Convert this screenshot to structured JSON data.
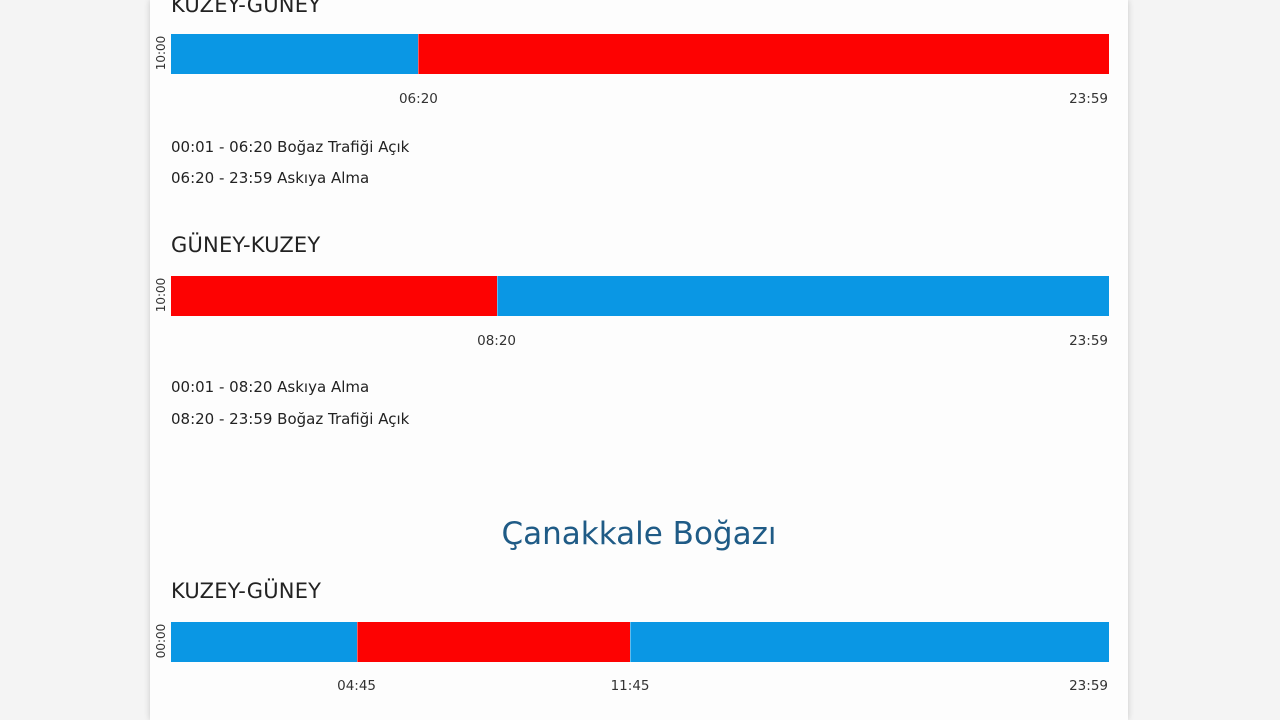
{
  "colors": {
    "open": "#0a97e4",
    "suspended": "#fd0202"
  },
  "straits": [
    {
      "title": "",
      "directions": [
        {
          "title": "KUZEY-GÜNEY",
          "start_label": "10:00",
          "segments": [
            {
              "status": "open",
              "from": "00:01",
              "to": "06:20"
            },
            {
              "status": "suspended",
              "from": "06:20",
              "to": "23:59"
            }
          ],
          "ticks": [
            "06:20",
            "23:59"
          ],
          "schedule": [
            "00:01 - 06:20 Boğaz Trafiği Açık",
            "06:20 - 23:59 Askıya Alma"
          ]
        },
        {
          "title": "GÜNEY-KUZEY",
          "start_label": "10:00",
          "segments": [
            {
              "status": "suspended",
              "from": "00:01",
              "to": "08:20"
            },
            {
              "status": "open",
              "from": "08:20",
              "to": "23:59"
            }
          ],
          "ticks": [
            "08:20",
            "23:59"
          ],
          "schedule": [
            "00:01 - 08:20 Askıya Alma",
            "08:20 - 23:59 Boğaz Trafiği Açık"
          ]
        }
      ]
    },
    {
      "title": "Çanakkale Boğazı",
      "directions": [
        {
          "title": "KUZEY-GÜNEY",
          "start_label": "00:00",
          "segments": [
            {
              "status": "open",
              "from": "00:00",
              "to": "04:45"
            },
            {
              "status": "suspended",
              "from": "04:45",
              "to": "11:45"
            },
            {
              "status": "open",
              "from": "11:45",
              "to": "23:59"
            }
          ],
          "ticks": [
            "04:45",
            "11:45",
            "23:59"
          ],
          "schedule": []
        }
      ]
    }
  ]
}
